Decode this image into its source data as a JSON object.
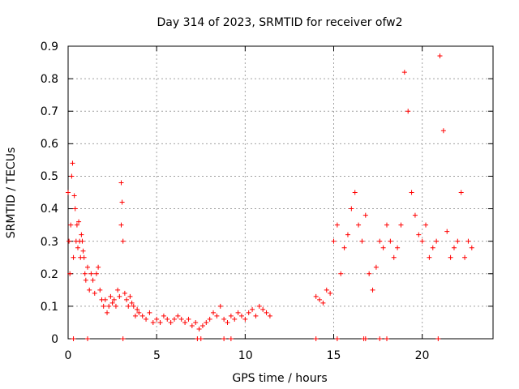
{
  "chart_data": {
    "type": "scatter",
    "title": "Day 314 of 2023, SRMTID for receiver ofw2",
    "xlabel": "GPS time / hours",
    "ylabel": "SRMTID / TECUs",
    "xlim": [
      0,
      24
    ],
    "ylim": [
      0,
      0.9
    ],
    "grid": true,
    "marker": "+",
    "marker_color": "#ff0000",
    "x_tick_labels": [
      "0",
      "5",
      "10",
      "15",
      "20"
    ],
    "y_tick_labels": [
      "0",
      "0.1",
      "0.2",
      "0.3",
      "0.4",
      "0.5",
      "0.6",
      "0.7",
      "0.8",
      "0.9"
    ],
    "series": [
      {
        "name": "SRMTID",
        "x": [
          0.0,
          0.05,
          0.1,
          0.15,
          0.2,
          0.25,
          0.3,
          0.35,
          0.4,
          0.45,
          0.5,
          0.55,
          0.6,
          0.65,
          0.7,
          0.75,
          0.8,
          0.85,
          0.9,
          0.95,
          1.0,
          1.1,
          1.2,
          1.3,
          1.4,
          1.5,
          1.6,
          1.7,
          1.8,
          1.9,
          2.0,
          2.1,
          2.2,
          2.3,
          2.4,
          2.5,
          2.6,
          2.7,
          2.8,
          2.9,
          3.0,
          3.0,
          3.05,
          3.1,
          3.2,
          3.3,
          3.4,
          3.5,
          3.6,
          3.7,
          3.8,
          3.9,
          4.0,
          4.2,
          4.4,
          4.6,
          4.8,
          5.0,
          5.2,
          5.4,
          5.6,
          5.8,
          6.0,
          6.2,
          6.4,
          6.6,
          6.8,
          7.0,
          7.2,
          7.4,
          7.6,
          7.8,
          8.0,
          8.2,
          8.4,
          8.6,
          8.8,
          9.0,
          9.2,
          9.4,
          9.6,
          9.8,
          10.0,
          10.2,
          10.4,
          10.6,
          10.8,
          11.0,
          11.2,
          11.4,
          14.0,
          14.2,
          14.4,
          14.6,
          14.8,
          15.0,
          15.2,
          15.4,
          15.6,
          15.8,
          16.0,
          16.2,
          16.4,
          16.6,
          16.8,
          17.0,
          17.2,
          17.4,
          17.6,
          17.8,
          18.0,
          18.2,
          18.4,
          18.6,
          18.8,
          19.0,
          19.2,
          19.4,
          19.6,
          19.8,
          20.0,
          20.2,
          20.4,
          20.6,
          20.8,
          21.0,
          21.2,
          21.4,
          21.6,
          21.8,
          22.0,
          22.2,
          22.4,
          22.6,
          22.8,
          0.3,
          1.1,
          3.1,
          7.3,
          7.5,
          8.8,
          9.2,
          14.0,
          15.2,
          16.7,
          16.8,
          17.6,
          18.0,
          20.9
        ],
        "y": [
          0.45,
          0.3,
          0.2,
          0.35,
          0.5,
          0.54,
          0.25,
          0.44,
          0.4,
          0.3,
          0.35,
          0.28,
          0.36,
          0.3,
          0.25,
          0.32,
          0.3,
          0.27,
          0.25,
          0.2,
          0.18,
          0.22,
          0.15,
          0.2,
          0.18,
          0.14,
          0.2,
          0.22,
          0.15,
          0.12,
          0.1,
          0.12,
          0.08,
          0.1,
          0.13,
          0.11,
          0.12,
          0.1,
          0.15,
          0.13,
          0.48,
          0.35,
          0.42,
          0.3,
          0.14,
          0.12,
          0.1,
          0.13,
          0.11,
          0.1,
          0.07,
          0.09,
          0.08,
          0.07,
          0.06,
          0.08,
          0.05,
          0.06,
          0.05,
          0.07,
          0.06,
          0.05,
          0.06,
          0.07,
          0.06,
          0.05,
          0.06,
          0.04,
          0.05,
          0.03,
          0.04,
          0.05,
          0.06,
          0.08,
          0.07,
          0.1,
          0.06,
          0.05,
          0.07,
          0.06,
          0.08,
          0.07,
          0.06,
          0.08,
          0.09,
          0.07,
          0.1,
          0.09,
          0.08,
          0.07,
          0.13,
          0.12,
          0.11,
          0.15,
          0.14,
          0.3,
          0.35,
          0.2,
          0.28,
          0.32,
          0.4,
          0.45,
          0.35,
          0.3,
          0.38,
          0.2,
          0.15,
          0.22,
          0.3,
          0.28,
          0.35,
          0.3,
          0.25,
          0.28,
          0.35,
          0.82,
          0.7,
          0.45,
          0.38,
          0.32,
          0.3,
          0.35,
          0.25,
          0.28,
          0.3,
          0.87,
          0.64,
          0.33,
          0.25,
          0.28,
          0.3,
          0.45,
          0.25,
          0.3,
          0.28,
          0.0,
          0.0,
          0.0,
          0.0,
          0.0,
          0.0,
          0.0,
          0.0,
          0.0,
          0.0,
          0.0,
          0.0,
          0.0,
          0.0
        ]
      }
    ]
  }
}
